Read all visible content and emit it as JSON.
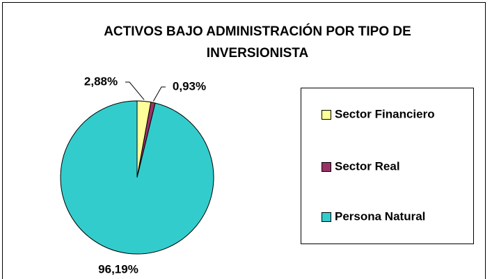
{
  "chart_data": {
    "type": "pie",
    "title": "ACTIVOS BAJO ADMINISTRACIÓN POR TIPO DE INVERSIONISTA",
    "categories": [
      "Sector Financiero",
      "Sector Real",
      "Persona Natural"
    ],
    "values": [
      2.88,
      0.93,
      96.19
    ],
    "value_labels": [
      "2,88%",
      "0,93%",
      "96,19%"
    ],
    "colors": [
      "#FFFF99",
      "#993366",
      "#33CCCC"
    ],
    "legend": "right"
  }
}
